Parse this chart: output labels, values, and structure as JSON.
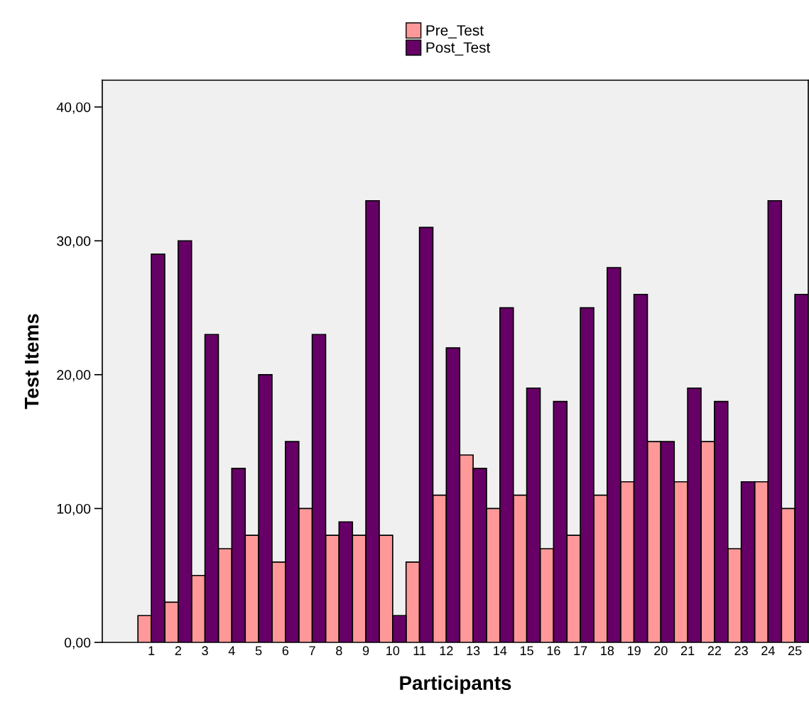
{
  "chart_data": {
    "type": "bar",
    "xlabel": "Participants",
    "ylabel": "Test Items",
    "categories": [
      "1",
      "2",
      "3",
      "4",
      "5",
      "6",
      "7",
      "8",
      "9",
      "10",
      "11",
      "12",
      "13",
      "14",
      "15",
      "16",
      "17",
      "18",
      "19",
      "20",
      "21",
      "22",
      "23",
      "24",
      "25"
    ],
    "series": [
      {
        "name": "Pre_Test",
        "color": "#ff9999",
        "values": [
          2,
          3,
          5,
          7,
          8,
          6,
          10,
          8,
          8,
          8,
          6,
          11,
          14,
          10,
          11,
          7,
          8,
          11,
          12,
          15,
          12,
          15,
          7,
          12,
          10
        ]
      },
      {
        "name": "Post_Test",
        "color": "#660066",
        "values": [
          29,
          30,
          23,
          13,
          20,
          15,
          23,
          9,
          33,
          2,
          31,
          22,
          13,
          25,
          19,
          18,
          25,
          28,
          26,
          15,
          19,
          18,
          12,
          33,
          26
        ]
      }
    ],
    "ylim": [
      0,
      42
    ],
    "yticks": [
      {
        "value": 0,
        "label": "0,00"
      },
      {
        "value": 10,
        "label": "10,00"
      },
      {
        "value": 20,
        "label": "20,00"
      },
      {
        "value": 30,
        "label": "30,00"
      },
      {
        "value": 40,
        "label": "40,00"
      }
    ],
    "grid": false,
    "legend": "top"
  }
}
